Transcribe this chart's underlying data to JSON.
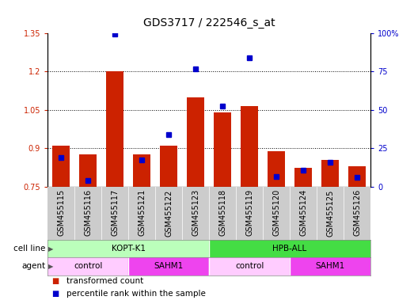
{
  "title": "GDS3717 / 222546_s_at",
  "samples": [
    "GSM455115",
    "GSM455116",
    "GSM455117",
    "GSM455121",
    "GSM455122",
    "GSM455123",
    "GSM455118",
    "GSM455119",
    "GSM455120",
    "GSM455124",
    "GSM455125",
    "GSM455126"
  ],
  "red_bars": [
    0.91,
    0.875,
    1.2,
    0.875,
    0.91,
    1.1,
    1.04,
    1.065,
    0.89,
    0.825,
    0.855,
    0.83
  ],
  "blue_squares": [
    0.865,
    0.775,
    1.345,
    0.855,
    0.955,
    1.21,
    1.065,
    1.255,
    0.79,
    0.815,
    0.845,
    0.785
  ],
  "bar_base": 0.75,
  "ylim_left": [
    0.75,
    1.35
  ],
  "ylim_right": [
    0,
    100
  ],
  "yticks_left": [
    0.75,
    0.9,
    1.05,
    1.2,
    1.35
  ],
  "yticks_right": [
    0,
    25,
    50,
    75,
    100
  ],
  "ytick_labels_left": [
    "0.75",
    "0.9",
    "1.05",
    "1.2",
    "1.35"
  ],
  "ytick_labels_right": [
    "0",
    "25",
    "50",
    "75",
    "100%"
  ],
  "dotted_lines": [
    0.9,
    1.05,
    1.2
  ],
  "red_color": "#cc2200",
  "blue_color": "#0000cc",
  "bar_width": 0.65,
  "cell_line_groups": [
    {
      "label": "KOPT-K1",
      "start": 0,
      "end": 6,
      "color": "#bbffbb"
    },
    {
      "label": "HPB-ALL",
      "start": 6,
      "end": 12,
      "color": "#44dd44"
    }
  ],
  "agent_groups": [
    {
      "label": "control",
      "start": 0,
      "end": 3,
      "color": "#ffccff"
    },
    {
      "label": "SAHM1",
      "start": 3,
      "end": 6,
      "color": "#ee44ee"
    },
    {
      "label": "control",
      "start": 6,
      "end": 9,
      "color": "#ffccff"
    },
    {
      "label": "SAHM1",
      "start": 9,
      "end": 12,
      "color": "#ee44ee"
    }
  ],
  "legend_items": [
    {
      "label": "transformed count",
      "color": "#cc2200"
    },
    {
      "label": "percentile rank within the sample",
      "color": "#0000cc"
    }
  ],
  "bg_color": "#ffffff",
  "xtick_area_bg": "#cccccc",
  "cell_line_label": "cell line",
  "agent_label": "agent",
  "title_fontsize": 10,
  "axis_fontsize": 7,
  "tick_fontsize": 7,
  "annot_fontsize": 7.5
}
